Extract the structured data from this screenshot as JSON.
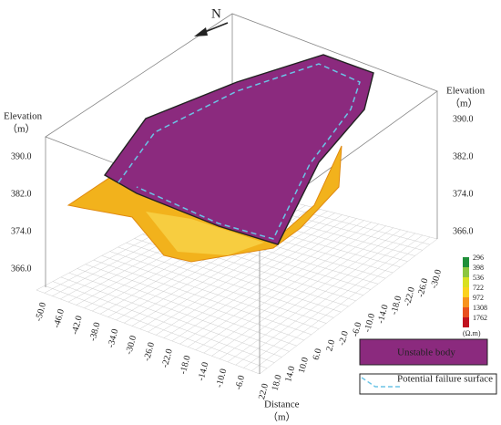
{
  "north": "N",
  "left_axis": {
    "label": "Elevation",
    "unit": "（m）",
    "ticks": [
      "390.0",
      "382.0",
      "374.0",
      "366.0"
    ]
  },
  "right_axis": {
    "label": "Elevation",
    "unit": "（m）",
    "ticks": [
      "390.0",
      "382.0",
      "374.0",
      "366.0"
    ]
  },
  "front_axis": {
    "ticks": [
      "-50.0",
      "-46.0",
      "-42.0",
      "-38.0",
      "-34.0",
      "-30.0",
      "-26.0",
      "-22.0",
      "-18.0",
      "-14.0",
      "-10.0",
      "-6.0"
    ]
  },
  "side_axis": {
    "label": "Distance",
    "unit": "（m）",
    "ticks": [
      "-30.0",
      "-26.0",
      "-22.0",
      "-18.0",
      "-14.0",
      "-10.0",
      "-6.0",
      "-2.0",
      "2.0",
      "6.0",
      "10.0",
      "14.0",
      "18.0",
      "22.0"
    ]
  },
  "colorbar": {
    "ticks": [
      "296",
      "398",
      "536",
      "722",
      "972",
      "1308",
      "1762"
    ],
    "unit": "(Ω.m)"
  },
  "legend": [
    "Unstable body",
    "Potential failure surface"
  ]
}
